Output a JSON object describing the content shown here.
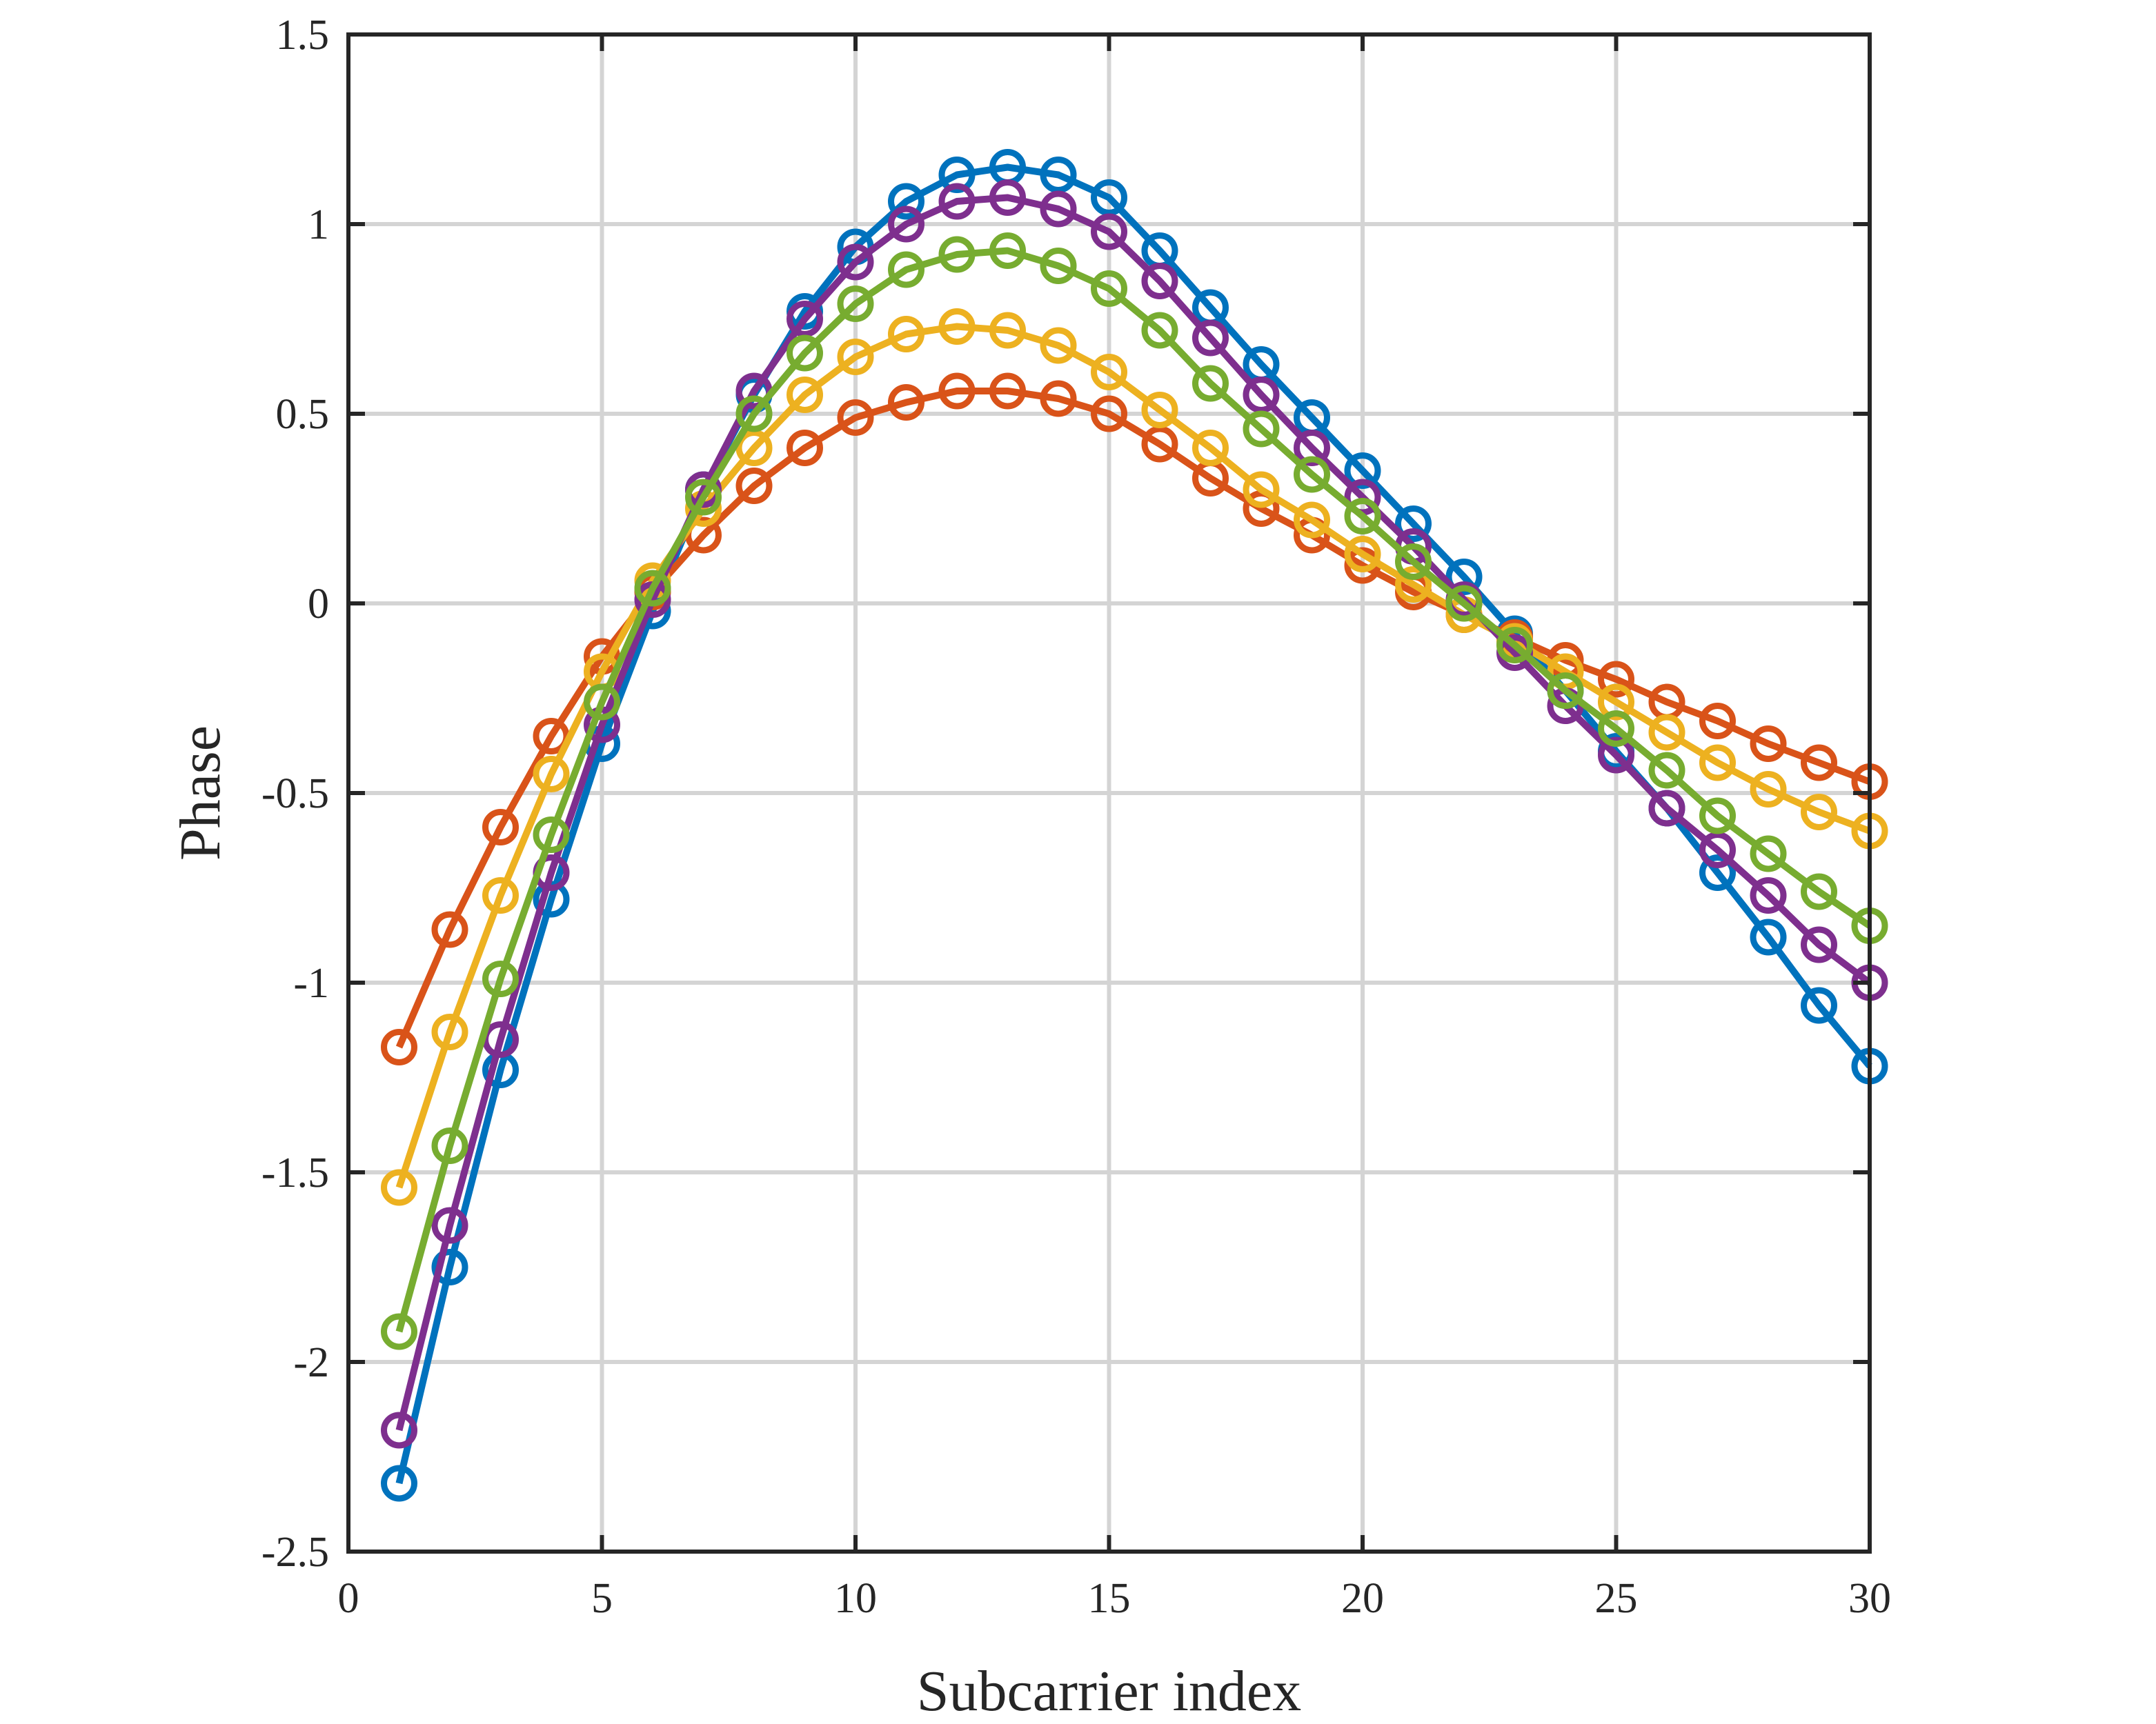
{
  "chart_data": {
    "type": "line",
    "title": "",
    "xlabel": "Subcarrier index",
    "ylabel": "Phase",
    "xlim": [
      0,
      30
    ],
    "ylim": [
      -2.5,
      1.5
    ],
    "xticks": [
      0,
      5,
      10,
      15,
      20,
      25,
      30
    ],
    "xtick_labels": [
      "0",
      "5",
      "10",
      "15",
      "20",
      "25",
      "30"
    ],
    "yticks": [
      1.5,
      1,
      0.5,
      0,
      -0.5,
      -1,
      -1.5,
      -2,
      -2.5
    ],
    "ytick_labels": [
      "1.5",
      "1",
      "0.5",
      "0",
      "-0.5",
      "-1",
      "-1.5",
      "-2",
      "-2.5"
    ],
    "grid": true,
    "marker": "circle",
    "x": [
      1,
      2,
      3,
      4,
      5,
      6,
      7,
      8,
      9,
      10,
      11,
      12,
      13,
      14,
      15,
      16,
      17,
      18,
      19,
      20,
      21,
      22,
      23,
      24,
      25,
      26,
      27,
      28,
      29,
      30
    ],
    "series": [
      {
        "color": "#0072BD",
        "values": [
          -2.32,
          -1.75,
          -1.23,
          -0.78,
          -0.37,
          -0.02,
          0.3,
          0.55,
          0.77,
          0.94,
          1.06,
          1.13,
          1.15,
          1.13,
          1.07,
          0.93,
          0.78,
          0.63,
          0.49,
          0.35,
          0.21,
          0.07,
          -0.08,
          -0.23,
          -0.39,
          -0.54,
          -0.71,
          -0.88,
          -1.06,
          -1.22
        ]
      },
      {
        "color": "#D95319",
        "values": [
          -1.17,
          -0.86,
          -0.59,
          -0.35,
          -0.14,
          0.03,
          0.18,
          0.31,
          0.41,
          0.49,
          0.53,
          0.56,
          0.56,
          0.54,
          0.5,
          0.42,
          0.33,
          0.25,
          0.18,
          0.1,
          0.03,
          -0.03,
          -0.09,
          -0.15,
          -0.2,
          -0.26,
          -0.31,
          -0.37,
          -0.42,
          -0.47
        ]
      },
      {
        "color": "#EDB120",
        "values": [
          -1.54,
          -1.13,
          -0.77,
          -0.45,
          -0.18,
          0.06,
          0.25,
          0.41,
          0.55,
          0.65,
          0.71,
          0.73,
          0.72,
          0.68,
          0.61,
          0.51,
          0.41,
          0.3,
          0.22,
          0.13,
          0.05,
          -0.03,
          -0.1,
          -0.18,
          -0.26,
          -0.34,
          -0.42,
          -0.49,
          -0.55,
          -0.6
        ]
      },
      {
        "color": "#7E2F8E",
        "values": [
          -2.18,
          -1.64,
          -1.15,
          -0.71,
          -0.32,
          0.01,
          0.3,
          0.56,
          0.75,
          0.9,
          1.0,
          1.06,
          1.07,
          1.04,
          0.98,
          0.85,
          0.7,
          0.55,
          0.41,
          0.28,
          0.15,
          0.01,
          -0.13,
          -0.27,
          -0.4,
          -0.54,
          -0.65,
          -0.77,
          -0.9,
          -1.0
        ]
      },
      {
        "color": "#77AC30",
        "values": [
          -1.92,
          -1.43,
          -0.99,
          -0.61,
          -0.26,
          0.04,
          0.28,
          0.5,
          0.66,
          0.79,
          0.88,
          0.92,
          0.93,
          0.89,
          0.83,
          0.72,
          0.58,
          0.46,
          0.34,
          0.23,
          0.11,
          0.0,
          -0.11,
          -0.23,
          -0.33,
          -0.44,
          -0.56,
          -0.66,
          -0.76,
          -0.85
        ]
      }
    ]
  }
}
